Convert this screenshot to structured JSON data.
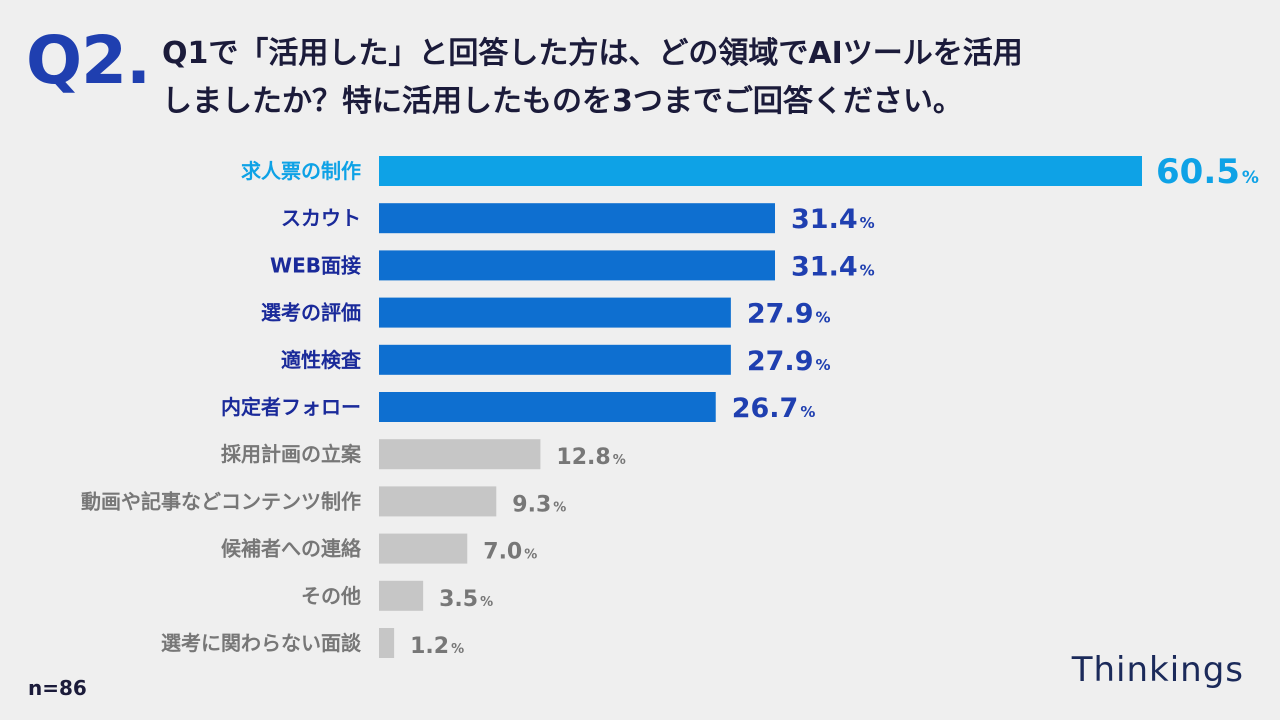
{
  "header": {
    "q_number": "Q2.",
    "question_line1": "Q1で「活用した」と回答した方は、どの領域でAIツールを活用",
    "question_line2": "しましたか？特に活用したものを3つまでご回答ください。"
  },
  "footer": {
    "sample_size": "n=86",
    "brand": "Thinkings"
  },
  "colors": {
    "top": "#0ea2e6",
    "highlight": "#0e6fd0",
    "highlight_text": "#1f3fb0",
    "highlight_label": "#1a2a9a",
    "other": "#c6c6c6",
    "other_text": "#777777"
  },
  "chart_data": {
    "type": "bar",
    "orientation": "horizontal",
    "unit": "%",
    "xlim": [
      0,
      60.5
    ],
    "categories": [
      "求人票の制作",
      "スカウト",
      "WEB面接",
      "選考の評価",
      "適性検査",
      "内定者フォロー",
      "採用計画の立案",
      "動画や記事などコンテンツ制作",
      "候補者への連絡",
      "その他",
      "選考に関わらない面談"
    ],
    "values": [
      60.5,
      31.4,
      31.4,
      27.9,
      27.9,
      26.7,
      12.8,
      9.3,
      7.0,
      3.5,
      1.2
    ],
    "value_labels": [
      "60.5",
      "31.4",
      "31.4",
      "27.9",
      "27.9",
      "26.7",
      "12.8",
      "9.3",
      "7.0",
      "3.5",
      "1.2"
    ],
    "groups": [
      "top",
      "highlight",
      "highlight",
      "highlight",
      "highlight",
      "highlight",
      "other",
      "other",
      "other",
      "other",
      "other"
    ]
  }
}
